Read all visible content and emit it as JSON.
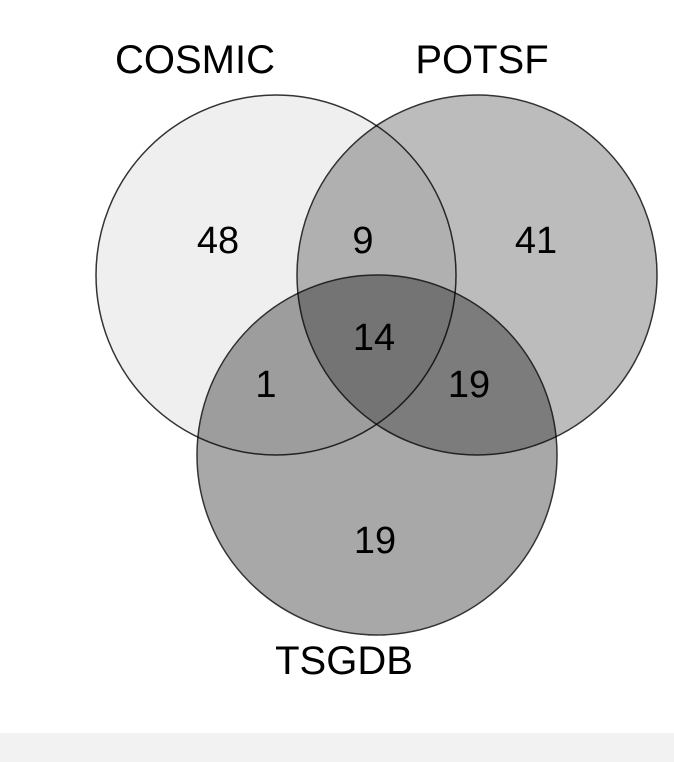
{
  "diagram": {
    "type": "venn-3",
    "sets": [
      {
        "id": "cosmic",
        "label": "COSMIC"
      },
      {
        "id": "potsf",
        "label": "POTSF"
      },
      {
        "id": "tsgdb",
        "label": "TSGDB"
      }
    ],
    "regions": {
      "cosmic_only": 48,
      "potsf_only": 41,
      "tsgdb_only": 19,
      "cosmic_potsf": 9,
      "cosmic_tsgdb": 1,
      "potsf_tsgdb": 19,
      "all_three": 14
    }
  },
  "colors": {
    "cosmic_fill": "#efefef",
    "potsf_fill": "#bcbcbc",
    "tsgdb_fill": "#a8a8a8",
    "outline": "#333333",
    "background": "#ffffff",
    "footer": "#f2f2f2"
  }
}
